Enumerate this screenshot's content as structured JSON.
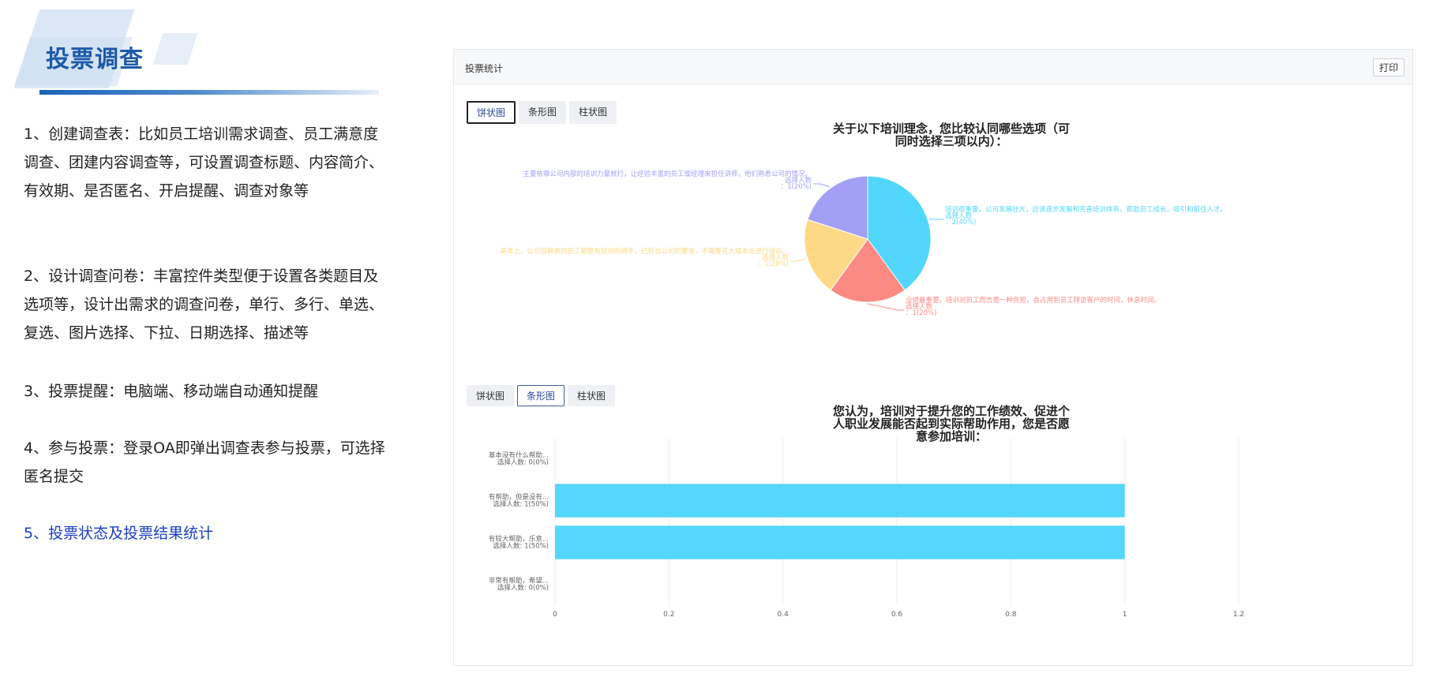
{
  "header": {
    "title": "投票调查"
  },
  "descriptions": [
    {
      "text": "1、创建调查表：比如员工培训需求调查、员工满意度调查、团建内容调查等，可设置调查标题、内容简介、有效期、是否匿名、开启提醒、调查对象等"
    },
    {
      "text": "2、设计调查问卷：丰富控件类型便于设置各类题目及选项等，设计出需求的调查问卷，单行、多行、单选、复选、图片选择、下拉、日期选择、描述等"
    },
    {
      "text": "3、投票提醒：电脑端、移动端自动通知提醒"
    },
    {
      "text": "4、参与投票：登录OA即弹出调查表参与投票，可选择匿名提交"
    },
    {
      "text": "5、投票状态及投票结果统计"
    }
  ],
  "panel": {
    "title": "投票统计",
    "print_label": "打印"
  },
  "tabs1": [
    {
      "label": "饼状图"
    },
    {
      "label": "条形图"
    },
    {
      "label": "柱状图"
    }
  ],
  "tabs2": [
    {
      "label": "饼状图"
    },
    {
      "label": "条形图"
    },
    {
      "label": "柱状图"
    }
  ],
  "chart_data": [
    {
      "type": "pie",
      "title_lines": [
        "关于以下培训理念，您比较认同哪些选项（可",
        "同时选择三项以内）："
      ],
      "slices": [
        {
          "label": "培训很重要，公司发展壮大，应该逐步发展和完善培训体系，帮助员工成长，吸引和留住人才。",
          "count_label": "选择人数",
          "value_label": "：2(40%)",
          "value": 2,
          "color": "#53d6fc"
        },
        {
          "label": "业绩最重要，培训对员工而言是一种负担，会占用到员工拜访客户的时间，休息时间。",
          "count_label": "选择人数",
          "value_label": "：1(20%)",
          "value": 1,
          "color": "#fb8a84"
        },
        {
          "label": "基本上，公司招聘来的员工都是有经验的熟手，已符合公司的要求，不需要花大成本去进行培训。",
          "count_label": "选择人数",
          "value_label": "：1(20%)",
          "value": 1,
          "color": "#fdd987"
        },
        {
          "label": "主要依靠公司内部的培训力量就行，让经验丰富的员工或经理来担任讲师，他们熟悉公司的情况。",
          "count_label": "选择人数",
          "value_label": "：1(20%)",
          "value": 1,
          "color": "#a2a0f6"
        }
      ]
    },
    {
      "type": "bar",
      "orientation": "horizontal",
      "title_lines": [
        "您认为，培训对于提升您的工作绩效、促进个",
        "人职业发展能否起到实际帮助作用，您是否愿",
        "意参加培训："
      ],
      "categories": [
        {
          "name": "基本没有什么帮助...",
          "sub": "选择人数: 0(0%)"
        },
        {
          "name": "有帮助，但是没有...",
          "sub": "选择人数: 1(50%)"
        },
        {
          "name": "有较大帮助，乐意...",
          "sub": "选择人数: 1(50%)"
        },
        {
          "name": "非常有帮助，希望...",
          "sub": "选择人数: 0(0%)"
        }
      ],
      "values": [
        0,
        1,
        1,
        0
      ],
      "xlim": [
        0,
        1.2
      ],
      "xticks": [
        "0",
        "0.2",
        "0.4",
        "0.6",
        "0.8",
        "1",
        "1.2"
      ],
      "bar_color": "#55d6fc",
      "grid": true
    }
  ]
}
